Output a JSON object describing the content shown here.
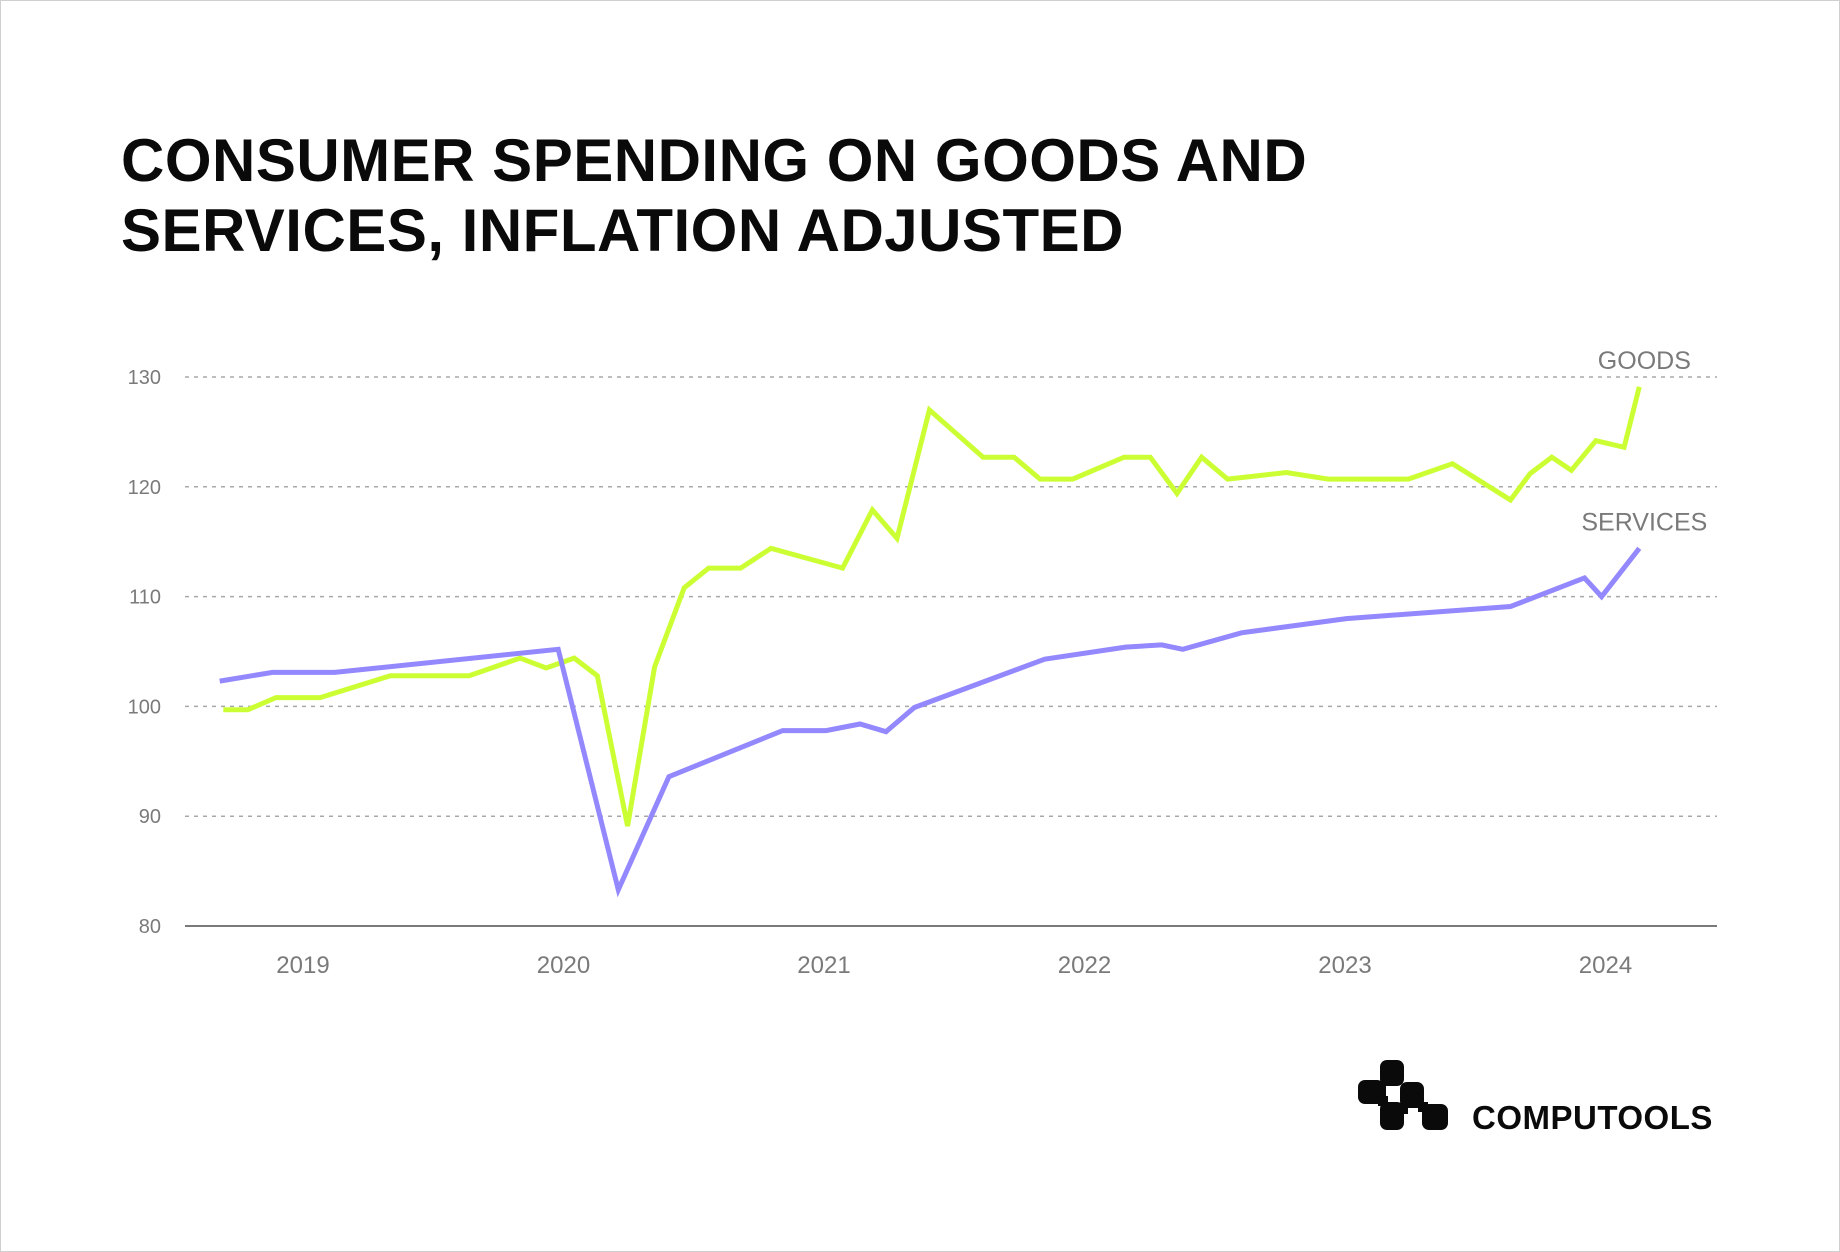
{
  "chart_data": {
    "type": "line",
    "title": "CONSUMER SPENDING ON GOODS AND SERVICES, INFLATION ADJUSTED",
    "xlabel": "",
    "ylabel": "",
    "ylim": [
      80,
      130
    ],
    "yticks": [
      "80",
      "90",
      "100",
      "110",
      "120",
      "130"
    ],
    "xticks": [
      "2019",
      "2020",
      "2021",
      "2022",
      "2023",
      "2024"
    ],
    "grid": "horizontal dashed",
    "legend": "inline labels at line ends (right)",
    "series": [
      {
        "name": "GOODS",
        "color": "#ccff33",
        "points": [
          [
            "2018-09-11",
            99.7
          ],
          [
            "2018-10-15",
            99.7
          ],
          [
            "2018-11-24",
            100.8
          ],
          [
            "2019-01-25",
            100.8
          ],
          [
            "2019-05-02",
            102.8
          ],
          [
            "2019-08-21",
            102.8
          ],
          [
            "2019-11-01",
            104.4
          ],
          [
            "2019-12-07",
            103.5
          ],
          [
            "2020-01-16",
            104.4
          ],
          [
            "2020-02-18",
            102.8
          ],
          [
            "2020-03-30",
            89.1
          ],
          [
            "2020-05-07",
            103.6
          ],
          [
            "2020-06-18",
            110.8
          ],
          [
            "2020-07-22",
            112.6
          ],
          [
            "2020-09-06",
            112.6
          ],
          [
            "2020-10-18",
            114.4
          ],
          [
            "2021-01-27",
            112.6
          ],
          [
            "2021-03-08",
            117.9
          ],
          [
            "2021-04-12",
            115.3
          ],
          [
            "2021-05-27",
            127.0
          ],
          [
            "2021-08-11",
            122.7
          ],
          [
            "2021-09-24",
            122.7
          ],
          [
            "2021-10-30",
            120.7
          ],
          [
            "2021-12-15",
            120.7
          ],
          [
            "2022-02-26",
            122.7
          ],
          [
            "2022-04-02",
            122.7
          ],
          [
            "2022-05-09",
            119.4
          ],
          [
            "2022-06-13",
            122.7
          ],
          [
            "2022-07-19",
            120.7
          ],
          [
            "2022-10-10",
            121.3
          ],
          [
            "2022-12-08",
            120.7
          ],
          [
            "2023-03-29",
            120.7
          ],
          [
            "2023-05-30",
            122.1
          ],
          [
            "2023-08-20",
            118.8
          ],
          [
            "2023-09-17",
            121.2
          ],
          [
            "2023-10-17",
            122.7
          ],
          [
            "2023-11-14",
            121.5
          ],
          [
            "2023-12-18",
            124.2
          ],
          [
            "2024-01-27",
            123.6
          ],
          [
            "2024-02-18",
            129.1
          ]
        ]
      },
      {
        "name": "SERVICES",
        "color": "#9488ff",
        "points": [
          [
            "2018-09-06",
            102.3
          ],
          [
            "2018-11-19",
            103.1
          ],
          [
            "2019-02-15",
            103.1
          ],
          [
            "2019-12-24",
            105.2
          ],
          [
            "2020-03-17",
            83.3
          ],
          [
            "2020-05-27",
            93.6
          ],
          [
            "2020-11-04",
            97.8
          ],
          [
            "2021-01-04",
            97.8
          ],
          [
            "2021-02-21",
            98.4
          ],
          [
            "2021-03-27",
            97.7
          ],
          [
            "2021-05-06",
            99.9
          ],
          [
            "2021-11-06",
            104.3
          ],
          [
            "2022-02-28",
            105.4
          ],
          [
            "2022-04-18",
            105.6
          ],
          [
            "2022-05-17",
            105.2
          ],
          [
            "2022-08-08",
            106.7
          ],
          [
            "2023-01-03",
            108.0
          ],
          [
            "2023-08-20",
            109.1
          ],
          [
            "2023-12-02",
            111.7
          ],
          [
            "2023-12-26",
            110.0
          ],
          [
            "2024-02-18",
            114.4
          ]
        ]
      }
    ]
  },
  "brand": {
    "name": "COMPUTOOLS",
    "logo_icon": "computools-blocks-logo"
  },
  "colors": {
    "axis": "#7a7a7a",
    "grid": "#a8a8a8",
    "text": "#0a0a0a"
  }
}
